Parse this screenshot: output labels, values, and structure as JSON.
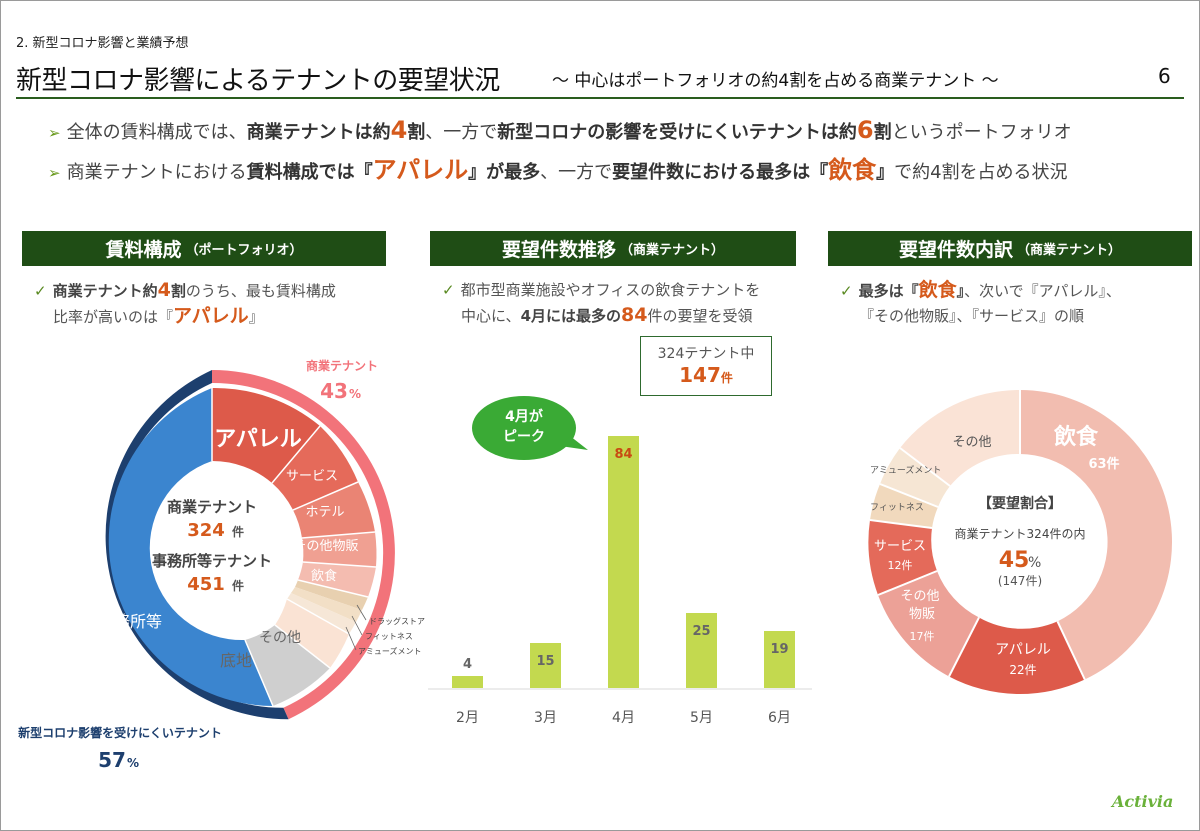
{
  "header": {
    "section": "2. 新型コロナ影響と業績予想",
    "title": "新型コロナ影響によるテナントの要望状況",
    "subtitle": "～ 中心はポートフォリオの約4割を占める商業テナント ～",
    "page_number": "6"
  },
  "bullets": {
    "b1": {
      "t1": "全体の賃料構成では、",
      "t2": "商業テナントは約",
      "t3": "4",
      "t4": "割",
      "t5": "、一方で",
      "t6": "新型コロナの影響を受けにくいテナントは約",
      "t7": "6",
      "t8": "割",
      "t9": "というポートフォリオ"
    },
    "b2": {
      "t1": "商業テナントにおける",
      "t2": "賃料構成では『",
      "t3": "アパレル",
      "t4": "』が最多",
      "t5": "、一方で",
      "t6": "要望件数における最多は『",
      "t7": "飲食",
      "t8": "』",
      "t9": "で約4割を占める状況"
    }
  },
  "panel1": {
    "header": "賃料構成",
    "header_sub": "（ポートフォリオ）",
    "note": {
      "a": "商業テナント約",
      "b": "4",
      "c": "割",
      "d": "のうち、最も賃料構成",
      "e": "比率が高いのは『",
      "f": "アパレル",
      "g": "』"
    },
    "outer_label_commercial": "商業テナント",
    "outer_value_commercial": "43",
    "outer_label_office": "新型コロナ影響を受けにくいテナント",
    "outer_value_office": "57",
    "pct": "%",
    "center": {
      "l1": "商業テナント",
      "v1": "324",
      "l2": "事務所等テナント",
      "v2": "451",
      "unit": "件"
    },
    "segments": {
      "apparel": "アパレル",
      "service": "サービス",
      "hotel": "ホテル",
      "other_retail": "その他物販",
      "food": "飲食",
      "drug": "ドラッグストア",
      "fitness": "フィットネス",
      "amusement": "アミューズメント",
      "other": "その他",
      "land": "底地",
      "office": "事務所等"
    }
  },
  "panel2": {
    "header": "要望件数推移",
    "header_sub": "（商業テナント）",
    "note": {
      "a": "都市型商業施設やオフィスの飲食テナントを",
      "b": "中心に、",
      "c": "4月には最多の",
      "d": "84",
      "e": "件",
      "f": "の要望を受領"
    },
    "callout": {
      "l1": "324テナント中",
      "v": "147",
      "unit": "件"
    },
    "peak": {
      "l1": "4月が",
      "l2": "ピーク"
    }
  },
  "panel3": {
    "header": "要望件数内訳",
    "header_sub": "（商業テナント）",
    "note": {
      "a": "最多は『",
      "b": "飲食",
      "c": "』",
      "d": "、次いで『アパレル』、",
      "e": "『その他物販』、『サービス』の順"
    },
    "center": {
      "l1": "【要望割合】",
      "l2": "商業テナント324件の内",
      "v": "45",
      "pct": "%",
      "l3": "(147件)"
    },
    "labels": {
      "food": "飲食",
      "food_n": "63件",
      "apparel": "アパレル",
      "apparel_n": "22件",
      "other_retail_1": "その他",
      "other_retail_2": "物販",
      "other_retail_n": "17件",
      "service": "サービス",
      "service_n": "12件",
      "fitness": "フィットネス",
      "amusement": "アミューズメント",
      "other": "その他"
    }
  },
  "chart_data": {
    "type": "bar",
    "title": "要望件数推移",
    "categories": [
      "2月",
      "3月",
      "4月",
      "5月",
      "6月"
    ],
    "values": [
      4,
      15,
      84,
      25,
      19
    ],
    "highlight_index": 2,
    "bar_color": "#c3d94f",
    "highlight_label_color": "#c84a12",
    "ylim": [
      0,
      90
    ]
  },
  "logo": "Activia",
  "colors": {
    "dark_green": "#1f4d15",
    "orange": "#d55a1c",
    "pink": "#f2737a",
    "navy": "#1d3f6e",
    "blue": "#3b85cf"
  }
}
